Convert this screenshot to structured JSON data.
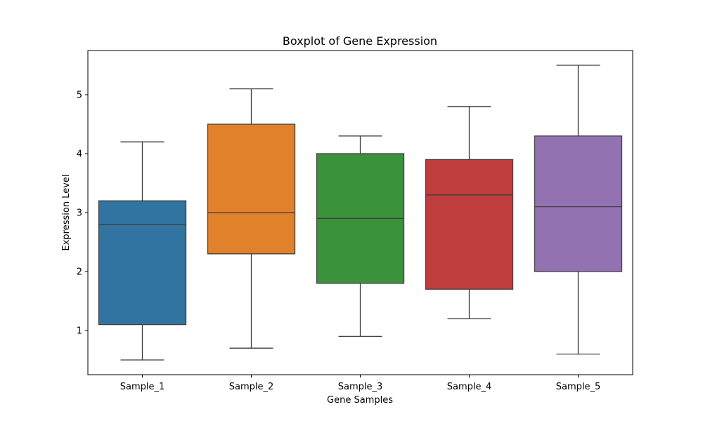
{
  "chart_data": {
    "type": "box",
    "title": "Boxplot of Gene Expression",
    "xlabel": "Gene Samples",
    "ylabel": "Expression Level",
    "categories": [
      "Sample_1",
      "Sample_2",
      "Sample_3",
      "Sample_4",
      "Sample_5"
    ],
    "yticks": [
      "1",
      "2",
      "3",
      "4",
      "5"
    ],
    "ylim": [
      0.25,
      5.75
    ],
    "grid": false,
    "legend": "none",
    "boxes": [
      {
        "category": "Sample_1",
        "min": 0.5,
        "q1": 1.1,
        "median": 2.8,
        "q3": 3.2,
        "max": 4.2,
        "color": "#3274a1"
      },
      {
        "category": "Sample_2",
        "min": 0.7,
        "q1": 2.3,
        "median": 3.0,
        "q3": 4.5,
        "max": 5.1,
        "color": "#e1812c"
      },
      {
        "category": "Sample_3",
        "min": 0.9,
        "q1": 1.8,
        "median": 2.9,
        "q3": 4.0,
        "max": 4.3,
        "color": "#3a923a"
      },
      {
        "category": "Sample_4",
        "min": 1.2,
        "q1": 1.7,
        "median": 3.3,
        "q3": 3.9,
        "max": 4.8,
        "color": "#c03d3e"
      },
      {
        "category": "Sample_5",
        "min": 0.6,
        "q1": 2.0,
        "median": 3.1,
        "q3": 4.3,
        "max": 5.5,
        "color": "#9372b2"
      }
    ]
  }
}
